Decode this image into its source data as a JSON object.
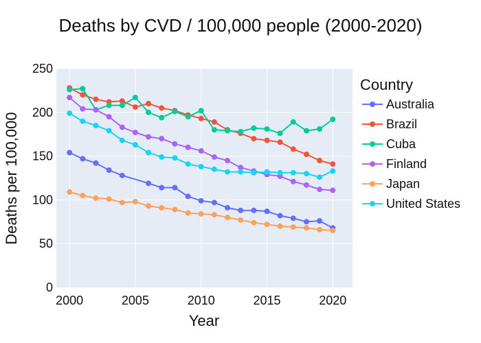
{
  "chart_data": {
    "type": "line",
    "title": "Deaths by CVD / 100,000 people (2000-2020)",
    "xlabel": "Year",
    "ylabel": "Deaths per 100,000",
    "xlim": [
      1999,
      2021.5
    ],
    "ylim": [
      0,
      250
    ],
    "xticks": [
      2000,
      2005,
      2010,
      2015,
      2020
    ],
    "yticks": [
      0,
      50,
      100,
      150,
      200,
      250
    ],
    "grid": true,
    "legend_title": "Country",
    "legend_position": "right",
    "x": [
      2000,
      2001,
      2002,
      2003,
      2004,
      2005,
      2006,
      2007,
      2008,
      2009,
      2010,
      2011,
      2012,
      2013,
      2014,
      2015,
      2016,
      2017,
      2018,
      2019,
      2020
    ],
    "series": [
      {
        "name": "Australia",
        "color": "#636efa",
        "values": [
          154,
          147,
          142,
          134,
          128,
          null,
          119,
          114,
          114,
          104,
          99,
          97,
          91,
          88,
          88,
          87,
          82,
          79,
          75,
          76,
          68
        ]
      },
      {
        "name": "Brazil",
        "color": "#ef553b",
        "values": [
          228,
          220,
          215,
          212,
          213,
          206,
          210,
          205,
          202,
          197,
          193,
          189,
          180,
          176,
          170,
          168,
          166,
          158,
          152,
          145,
          141
        ]
      },
      {
        "name": "Cuba",
        "color": "#00cc96",
        "values": [
          226,
          227,
          203,
          208,
          208,
          217,
          200,
          194,
          201,
          195,
          202,
          180,
          179,
          178,
          182,
          181,
          176,
          189,
          179,
          181,
          192
        ]
      },
      {
        "name": "Finland",
        "color": "#ab63fa",
        "values": [
          217,
          204,
          203,
          195,
          183,
          177,
          172,
          170,
          164,
          160,
          156,
          149,
          145,
          137,
          133,
          129,
          127,
          121,
          117,
          112,
          111
        ]
      },
      {
        "name": "Japan",
        "color": "#ffa15a",
        "values": [
          109,
          105,
          102,
          101,
          97,
          98,
          93,
          91,
          89,
          85,
          84,
          83,
          80,
          77,
          74,
          72,
          70,
          69,
          68,
          66,
          65
        ]
      },
      {
        "name": "United States",
        "color": "#19d3f3",
        "values": [
          199,
          190,
          185,
          179,
          168,
          163,
          154,
          149,
          148,
          141,
          138,
          135,
          132,
          132,
          131,
          132,
          131,
          131,
          130,
          126,
          133
        ]
      }
    ]
  }
}
